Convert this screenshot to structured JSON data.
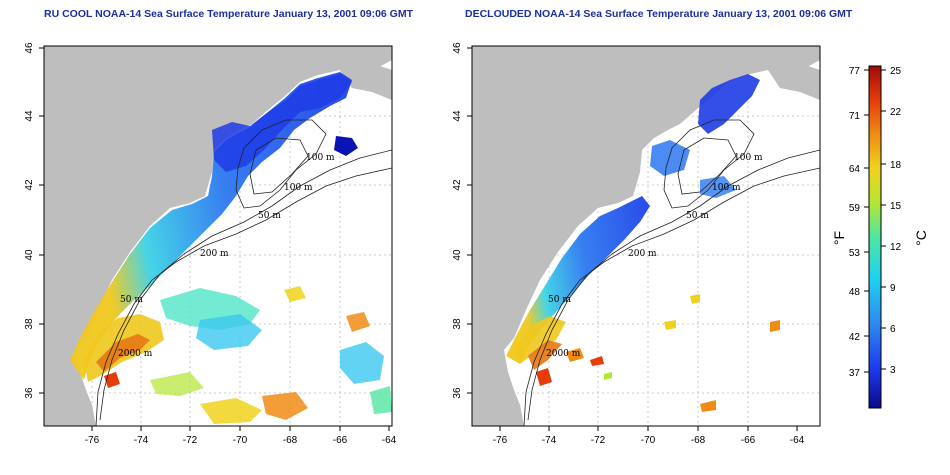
{
  "panels": [
    {
      "title": "RU COOL NOAA-14 Sea Surface Temperature January 13, 2001 09:06 GMT",
      "x_ticks": [
        "-76",
        "-74",
        "-72",
        "-70",
        "-68",
        "-66",
        "-64"
      ],
      "y_ticks": [
        "36",
        "38",
        "40",
        "42",
        "44",
        "46"
      ],
      "contour_labels": [
        "100 m",
        "100 m",
        "50 m",
        "200 m",
        "50 m",
        "2000 m"
      ]
    },
    {
      "title": "DECLOUDED NOAA-14 Sea Surface Temperature January 13, 2001 09:06 GMT",
      "x_ticks": [
        "-76",
        "-74",
        "-72",
        "-70",
        "-68",
        "-66",
        "-64"
      ],
      "y_ticks": [
        "36",
        "38",
        "40",
        "42",
        "44",
        "46"
      ],
      "contour_labels": [
        "100 m",
        "100 m",
        "50 m",
        "200 m",
        "50 m",
        "2000 m"
      ]
    }
  ],
  "colorbar": {
    "fahrenheit_ticks": [
      "77",
      "71",
      "64",
      "59",
      "53",
      "48",
      "42",
      "37"
    ],
    "celsius_ticks": [
      "25",
      "22",
      "18",
      "15",
      "12",
      "9",
      "6",
      "3"
    ],
    "fahrenheit_label": "°F",
    "celsius_label": "°C",
    "colors": [
      "#0a0a8c",
      "#1e3cf0",
      "#2d8cf0",
      "#1ed2f0",
      "#50e6a0",
      "#b4e632",
      "#f0d21e",
      "#f08c14",
      "#e63c0a",
      "#a00a0a"
    ]
  },
  "map_colors": {
    "land": "#bebebe",
    "ocean": "#ffffff",
    "contour": "#222222"
  }
}
